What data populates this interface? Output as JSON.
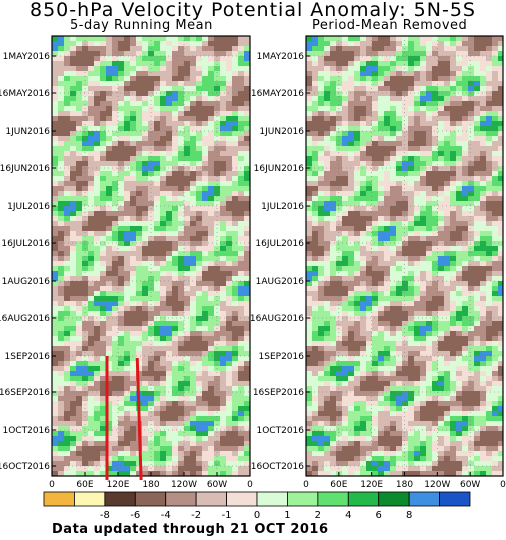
{
  "title": "850-hPa Velocity Potential Anomaly: 5N-5S",
  "footer": "Data updated through 21 OCT 2016",
  "chart_data": [
    {
      "type": "heatmap",
      "subtitle": "5-day Running Mean",
      "x_ticks": [
        "0",
        "60E",
        "120E",
        "180",
        "120W",
        "60W",
        "0"
      ],
      "y_ticks": [
        "1MAY2016",
        "16MAY2016",
        "1JUN2016",
        "16JUN2016",
        "1JUL2016",
        "16JUL2016",
        "1AUG2016",
        "16AUG2016",
        "1SEP2016",
        "16SEP2016",
        "1OCT2016",
        "16OCT2016"
      ],
      "annotations": [
        {
          "type": "red-line",
          "from": {
            "lon": 100,
            "date": "1SEP2016"
          },
          "to": {
            "lon": 100,
            "date": "21OCT2016"
          }
        },
        {
          "type": "red-line",
          "from": {
            "lon": 155,
            "date": "2SEP2016"
          },
          "to": {
            "lon": 162,
            "date": "21OCT2016"
          }
        }
      ]
    },
    {
      "type": "heatmap",
      "subtitle": "Period-Mean Removed",
      "x_ticks": [
        "0",
        "60E",
        "120E",
        "180",
        "120W",
        "60W",
        "0"
      ],
      "y_ticks": [
        "1MAY2016",
        "16MAY2016",
        "1JUN2016",
        "16JUN2016",
        "1JUL2016",
        "16JUL2016",
        "1AUG2016",
        "16AUG2016",
        "1SEP2016",
        "16SEP2016",
        "1OCT2016",
        "16OCT2016"
      ]
    }
  ],
  "colorbar": {
    "labels": [
      "-8",
      "-6",
      "-4",
      "-2",
      "-1",
      "0",
      "1",
      "2",
      "4",
      "6",
      "8"
    ],
    "colors": [
      "#f2b63f",
      "#fdf7b3",
      "#5a3a2e",
      "#8a6558",
      "#b58f86",
      "#d9bcb3",
      "#f4dfd7",
      "#d9fbd6",
      "#9df29a",
      "#5fe070",
      "#22b84a",
      "#0b8a2e",
      "#3f8fe0",
      "#1a55c8"
    ]
  },
  "colors": {
    "annotation_line": "#e0151b"
  }
}
